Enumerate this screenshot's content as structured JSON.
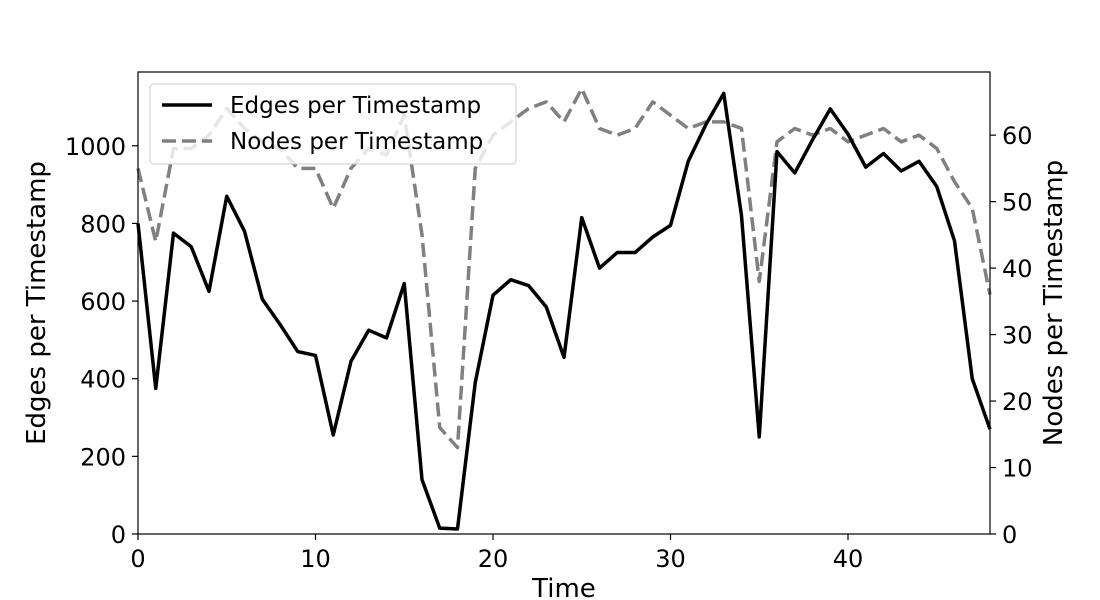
{
  "chart_data": {
    "type": "line",
    "title": "",
    "xlabel": "Time",
    "ylabel": "Edges per Timestamp",
    "ylabel_right": "Nodes per Timestamp",
    "xlim": [
      0,
      48
    ],
    "ylim": [
      0,
      1190
    ],
    "ylim_right": [
      0,
      69.5
    ],
    "x_ticks": [
      0,
      10,
      20,
      30,
      40
    ],
    "y_ticks": [
      0,
      200,
      400,
      600,
      800,
      1000
    ],
    "y_ticks_right": [
      0,
      10,
      20,
      30,
      40,
      50,
      60
    ],
    "grid": false,
    "legend_position": "top-left",
    "x": [
      0,
      1,
      2,
      3,
      4,
      5,
      6,
      7,
      8,
      9,
      10,
      11,
      12,
      13,
      14,
      15,
      16,
      17,
      18,
      19,
      20,
      21,
      22,
      23,
      24,
      25,
      26,
      27,
      28,
      29,
      30,
      31,
      32,
      33,
      34,
      35,
      36,
      37,
      38,
      39,
      40,
      41,
      42,
      43,
      44,
      45,
      46,
      47,
      48
    ],
    "series": [
      {
        "name": "Edges per Timestamp",
        "axis": "left",
        "color": "#000000",
        "style": "solid",
        "values": [
          800,
          375,
          775,
          740,
          625,
          870,
          780,
          605,
          540,
          470,
          460,
          255,
          445,
          525,
          505,
          645,
          140,
          15,
          13,
          390,
          615,
          655,
          640,
          585,
          455,
          815,
          685,
          725,
          725,
          765,
          795,
          960,
          1055,
          1135,
          820,
          250,
          985,
          930,
          1015,
          1095,
          1030,
          945,
          980,
          935,
          960,
          895,
          755,
          400,
          270
        ]
      },
      {
        "name": "Nodes per Timestamp",
        "axis": "right",
        "color": "#808080",
        "style": "dashed",
        "values": [
          55,
          44,
          58,
          58,
          60,
          64,
          61,
          59,
          58,
          55,
          55,
          49,
          55,
          58,
          57,
          63,
          45,
          16,
          13,
          55,
          60,
          62,
          64,
          65,
          62,
          67,
          61,
          60,
          61,
          65,
          63,
          61,
          62,
          62,
          61,
          38,
          59,
          61,
          60,
          61,
          59,
          60,
          61,
          59,
          60,
          58,
          53,
          49,
          36
        ]
      }
    ]
  }
}
